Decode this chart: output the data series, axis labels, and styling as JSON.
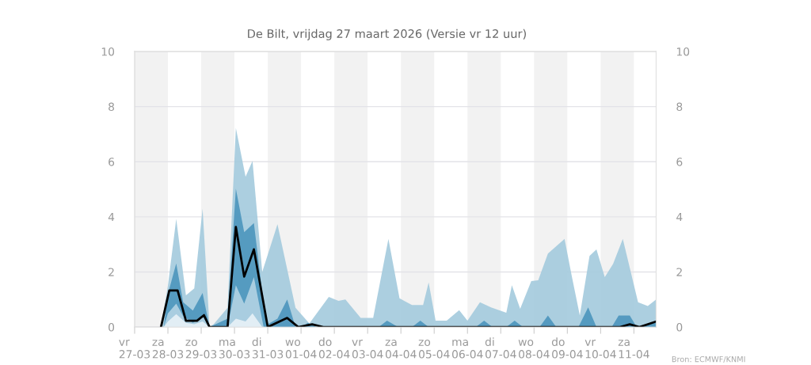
{
  "chart_data": {
    "type": "area",
    "title": "De Bilt, vrijdag 27 maart 2026 (Versie vr 12 uur)",
    "annotations": [
      "Bron: ECMWF/KNMI"
    ],
    "xlim": [
      "2026-03-27T00:00",
      "2026-04-11T16:00"
    ],
    "xticks": [
      {
        "value": "2026-03-27",
        "label": "vr\n27-03"
      },
      {
        "value": "2026-03-28",
        "label": "za\n28-03"
      },
      {
        "value": "2026-03-29",
        "label": "zo\n29-03"
      },
      {
        "value": "2026-03-30",
        "label": "ma\n30-03"
      },
      {
        "value": "2026-03-31",
        "label": "di\n31-03"
      },
      {
        "value": "2026-04-01",
        "label": "wo\n01-04"
      },
      {
        "value": "2026-04-02",
        "label": "do\n02-04"
      },
      {
        "value": "2026-04-03",
        "label": "vr\n03-04"
      },
      {
        "value": "2026-04-04",
        "label": "za\n04-04"
      },
      {
        "value": "2026-04-05",
        "label": "zo\n05-04"
      },
      {
        "value": "2026-04-06",
        "label": "ma\n06-04"
      },
      {
        "value": "2026-04-07",
        "label": "di\n07-04"
      },
      {
        "value": "2026-04-08",
        "label": "wo\n08-04"
      },
      {
        "value": "2026-04-09",
        "label": "do\n09-04"
      },
      {
        "value": "2026-04-10",
        "label": "vr\n10-04"
      },
      {
        "value": "2026-04-11",
        "label": "za\n11-04"
      }
    ],
    "ylim": [
      0,
      10
    ],
    "yticks": [
      0,
      2,
      4,
      6,
      8,
      10
    ],
    "y2lim": [
      0,
      10
    ],
    "y2ticks": [
      0,
      2,
      4,
      6,
      8,
      10
    ],
    "grid": "y",
    "legend": false,
    "bands": [
      {
        "axis": "x",
        "from": "2026-03-27",
        "to": "2026-03-28",
        "label": null,
        "color": "#f2f2f2"
      },
      {
        "axis": "x",
        "from": "2026-03-29",
        "to": "2026-03-30",
        "label": null,
        "color": "#f2f2f2"
      },
      {
        "axis": "x",
        "from": "2026-03-31",
        "to": "2026-04-01",
        "label": null,
        "color": "#f2f2f2"
      },
      {
        "axis": "x",
        "from": "2026-04-02",
        "to": "2026-04-03",
        "label": null,
        "color": "#f2f2f2"
      },
      {
        "axis": "x",
        "from": "2026-04-04",
        "to": "2026-04-05",
        "label": null,
        "color": "#f2f2f2"
      },
      {
        "axis": "x",
        "from": "2026-04-06",
        "to": "2026-04-07",
        "label": null,
        "color": "#f2f2f2"
      },
      {
        "axis": "x",
        "from": "2026-04-08",
        "to": "2026-04-09",
        "label": null,
        "color": "#f2f2f2"
      },
      {
        "axis": "x",
        "from": "2026-04-10",
        "to": "2026-04-11",
        "label": null,
        "color": "#f2f2f2"
      }
    ],
    "series": [
      {
        "color": "#a3cadd",
        "x": [
          "2026-03-27T19:00",
          "2026-03-28T00:00",
          "2026-03-28T06:00",
          "2026-03-28T13:00",
          "2026-03-28T19:00",
          "2026-03-29T01:00",
          "2026-03-29T06:00",
          "2026-03-29T09:00",
          "2026-03-29T19:00",
          "2026-03-30T01:00",
          "2026-03-30T08:00",
          "2026-03-30T13:00",
          "2026-03-30T20:00",
          "2026-03-31T07:00",
          "2026-03-31T20:00",
          "2026-04-01T06:00",
          "2026-04-01T20:00",
          "2026-04-02T03:00",
          "2026-04-02T08:00",
          "2026-04-02T19:00",
          "2026-04-03T04:00",
          "2026-04-03T15:00",
          "2026-04-03T23:00",
          "2026-04-04T08:00",
          "2026-04-04T16:00",
          "2026-04-04T20:00",
          "2026-04-05T01:00",
          "2026-04-05T09:00",
          "2026-04-05T18:00",
          "2026-04-06T00:00",
          "2026-04-06T09:00",
          "2026-04-06T17:00",
          "2026-04-07T04:00",
          "2026-04-07T08:00",
          "2026-04-07T14:00",
          "2026-04-07T22:00",
          "2026-04-08T03:00",
          "2026-04-08T10:00",
          "2026-04-08T22:00",
          "2026-04-09T03:00",
          "2026-04-09T09:00",
          "2026-04-09T16:00",
          "2026-04-09T21:00",
          "2026-04-10T03:00",
          "2026-04-10T09:00",
          "2026-04-10T16:00",
          "2026-04-11T03:00",
          "2026-04-11T10:00",
          "2026-04-11T16:00"
        ],
        "values": [
          0,
          1.5,
          3.92,
          1.15,
          1.4,
          4.3,
          0,
          0.1,
          0.7,
          7.22,
          5.45,
          6.03,
          2.0,
          3.73,
          0.7,
          0.13,
          1.09,
          0.95,
          1.0,
          0.33,
          0.33,
          3.2,
          1.04,
          0.8,
          0.8,
          1.62,
          0.23,
          0.23,
          0.61,
          0.23,
          0.9,
          0.71,
          0.52,
          1.52,
          0.66,
          1.67,
          1.7,
          2.67,
          3.2,
          1.9,
          0.42,
          2.58,
          2.82,
          1.81,
          2.29,
          3.2,
          0.9,
          0.76,
          1.0
        ]
      },
      {
        "color": "#4b95bc",
        "x": [
          "2026-03-27T21:00",
          "2026-03-28T00:00",
          "2026-03-28T06:00",
          "2026-03-28T11:00",
          "2026-03-28T18:00",
          "2026-03-29T01:00",
          "2026-03-29T06:00",
          "2026-03-29T19:00",
          "2026-03-30T01:00",
          "2026-03-30T07:00",
          "2026-03-30T14:00",
          "2026-03-30T21:00",
          "2026-03-31T00:00",
          "2026-03-31T07:00",
          "2026-03-31T14:00",
          "2026-03-31T20:00",
          "2026-04-01T00:00",
          "2026-04-01T05:00",
          "2026-04-01T11:00",
          "2026-04-03T08:00",
          "2026-04-03T14:00",
          "2026-04-03T22:00",
          "2026-04-04T08:00",
          "2026-04-04T14:00",
          "2026-04-04T20:00",
          "2026-04-06T06:00",
          "2026-04-06T12:00",
          "2026-04-06T18:00",
          "2026-04-07T04:00",
          "2026-04-07T10:00",
          "2026-04-07T16:00",
          "2026-04-08T04:00",
          "2026-04-08T10:00",
          "2026-04-08T16:00",
          "2026-04-09T08:00",
          "2026-04-09T15:00",
          "2026-04-09T21:00",
          "2026-04-10T08:00",
          "2026-04-10T13:00",
          "2026-04-10T21:00",
          "2026-04-11T02:00",
          "2026-04-11T16:00"
        ],
        "values": [
          0,
          1.2,
          2.31,
          0.9,
          0.6,
          1.24,
          0,
          0.3,
          5.02,
          3.44,
          3.77,
          0.85,
          0.1,
          0.3,
          1.0,
          0,
          0,
          0.15,
          0,
          0,
          0.23,
          0,
          0,
          0.23,
          0,
          0,
          0.23,
          0,
          0,
          0.23,
          0,
          0,
          0.42,
          0,
          0,
          0.71,
          0,
          0,
          0.42,
          0.42,
          0,
          0.2
        ]
      },
      {
        "color": "#b3d3e3",
        "x": [
          "2026-03-27T21:00",
          "2026-03-28T00:00",
          "2026-03-28T06:00",
          "2026-03-28T11:00",
          "2026-03-28T18:00",
          "2026-03-29T01:00",
          "2026-03-29T06:00",
          "2026-03-29T19:00",
          "2026-03-30T01:00",
          "2026-03-30T07:00",
          "2026-03-30T14:00",
          "2026-03-30T21:00"
        ],
        "values": [
          0,
          0.5,
          0.85,
          0.4,
          0.15,
          0.38,
          0,
          0,
          1.52,
          0.85,
          1.81,
          0
        ]
      },
      {
        "color": "#e8f2f7",
        "x": [
          "2026-03-27T21:00",
          "2026-03-28T00:00",
          "2026-03-28T06:00",
          "2026-03-28T13:00",
          "2026-03-28T19:00",
          "2026-03-29T01:00",
          "2026-03-29T06:00",
          "2026-03-29T19:00",
          "2026-03-30T01:00",
          "2026-03-30T08:00",
          "2026-03-30T13:00",
          "2026-03-30T20:00"
        ],
        "values": [
          0,
          0.2,
          0.47,
          0.15,
          0.1,
          0.2,
          0,
          0,
          0.3,
          0.2,
          0.5,
          0
        ]
      },
      {
        "type": "line",
        "color": "#000000",
        "line_style": "solid",
        "x": [
          "2026-03-27T19:00",
          "2026-03-28T01:00",
          "2026-03-28T07:00",
          "2026-03-28T13:00",
          "2026-03-28T21:00",
          "2026-03-29T02:00",
          "2026-03-29T06:00",
          "2026-03-29T19:00",
          "2026-03-30T01:00",
          "2026-03-30T07:00",
          "2026-03-30T14:00",
          "2026-03-31T00:00",
          "2026-03-31T14:00",
          "2026-03-31T22:00",
          "2026-04-01T08:00",
          "2026-04-01T16:00",
          "2026-04-10T14:00",
          "2026-04-10T21:00",
          "2026-04-11T04:00",
          "2026-04-11T16:00"
        ],
        "values": [
          0,
          1.33,
          1.33,
          0.23,
          0.23,
          0.43,
          0,
          0,
          3.63,
          1.83,
          2.82,
          0,
          0.33,
          0,
          0.1,
          0,
          0,
          0.1,
          0,
          0.2
        ]
      }
    ]
  }
}
